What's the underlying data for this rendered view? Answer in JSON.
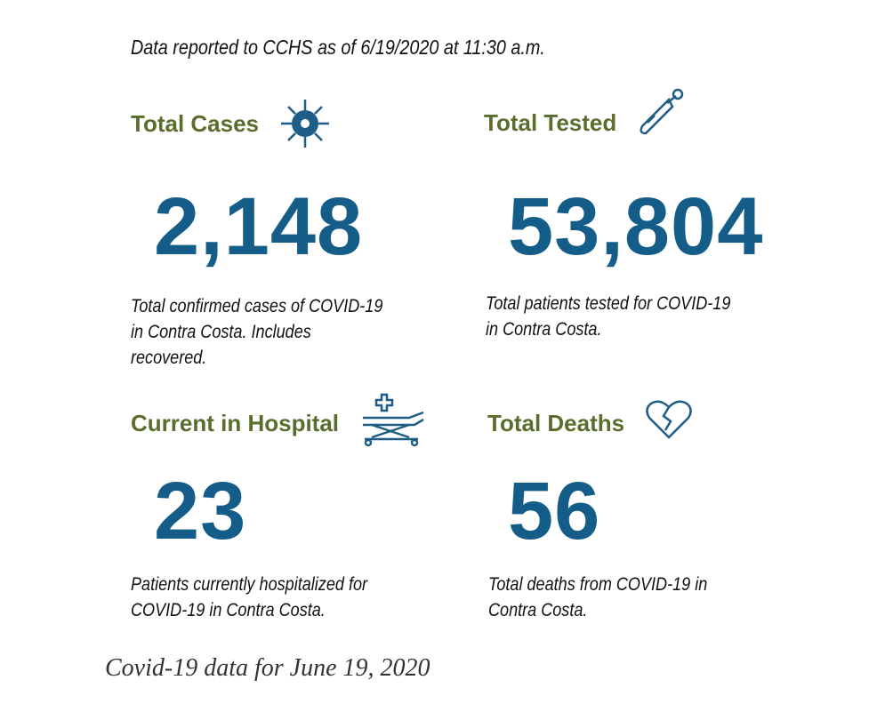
{
  "header": "Data reported to CCHS as of 6/19/2020 at 11:30 a.m.",
  "cards": [
    {
      "title": "Total Cases",
      "value": "2,148",
      "description": "Total confirmed cases of COVID-19 in Contra Costa. Includes recovered."
    },
    {
      "title": "Total Tested",
      "value": "53,804",
      "description": "Total patients tested for COVID-19 in Contra Costa."
    },
    {
      "title": "Current in Hospital",
      "value": "23",
      "description": "Patients currently hospitalized for COVID-19 in Contra Costa."
    },
    {
      "title": "Total Deaths",
      "value": "56",
      "description": "Total deaths from COVID-19 in Contra Costa."
    }
  ],
  "caption": "Covid-19 data for June 19, 2020"
}
